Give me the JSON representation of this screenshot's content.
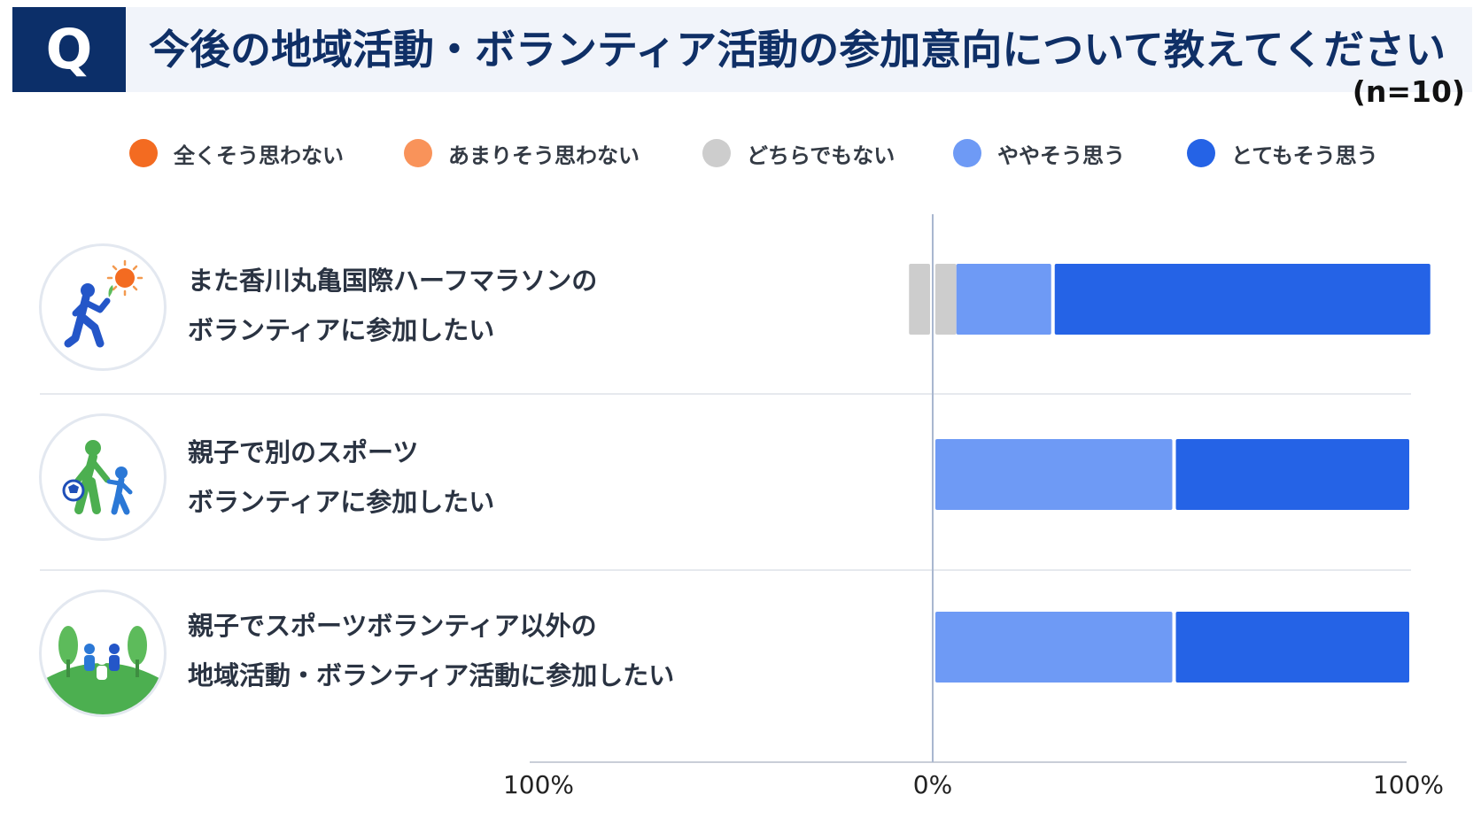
{
  "header": {
    "badge": "Q",
    "title": "今後の地域活動・ボランティア活動の参加意向について教えてください",
    "sample_size": "(n=10)"
  },
  "legend": [
    {
      "label": "全くそう思わない",
      "color": "#f36b21"
    },
    {
      "label": "あまりそう思わない",
      "color": "#f9935a"
    },
    {
      "label": "どちらでもない",
      "color": "#cdcdcd"
    },
    {
      "label": "ややそう思う",
      "color": "#6e9af5"
    },
    {
      "label": "とてもそう思う",
      "color": "#2563e6"
    }
  ],
  "rows": [
    {
      "line1": "また香川丸亀国際ハーフマラソンの",
      "line2": "ボランティアに参加したい",
      "icon": "runner-icon"
    },
    {
      "line1": "親子で別のスポーツ",
      "line2": "ボランティアに参加したい",
      "icon": "parent-child-icon"
    },
    {
      "line1": "親子でスポーツボランティア以外の",
      "line2": "地域活動・ボランティア活動に参加したい",
      "icon": "community-icon"
    }
  ],
  "chart_data": {
    "type": "bar",
    "orientation": "horizontal",
    "stacked": true,
    "diverging": true,
    "categories": [
      "また香川丸亀国際ハーフマラソンのボランティアに参加したい",
      "親子で別のスポーツボランティアに参加したい",
      "親子でスポーツボランティア以外の地域活動・ボランティア活動に参加したい"
    ],
    "neutral_series": {
      "name": "どちらでもない",
      "values": [
        10,
        0,
        0
      ]
    },
    "negative_series": [
      {
        "name": "全くそう思わない",
        "values": [
          0,
          0,
          0
        ]
      },
      {
        "name": "あまりそう思わない",
        "values": [
          0,
          0,
          0
        ]
      }
    ],
    "positive_series": [
      {
        "name": "ややそう思う",
        "values": [
          20,
          50,
          50
        ]
      },
      {
        "name": "とてもそう思う",
        "values": [
          80,
          50,
          50
        ]
      }
    ],
    "x_ticks": [
      "100%",
      "0%",
      "100%"
    ],
    "xlim": [
      -100,
      100
    ],
    "unit": "%",
    "legend_position": "top"
  }
}
